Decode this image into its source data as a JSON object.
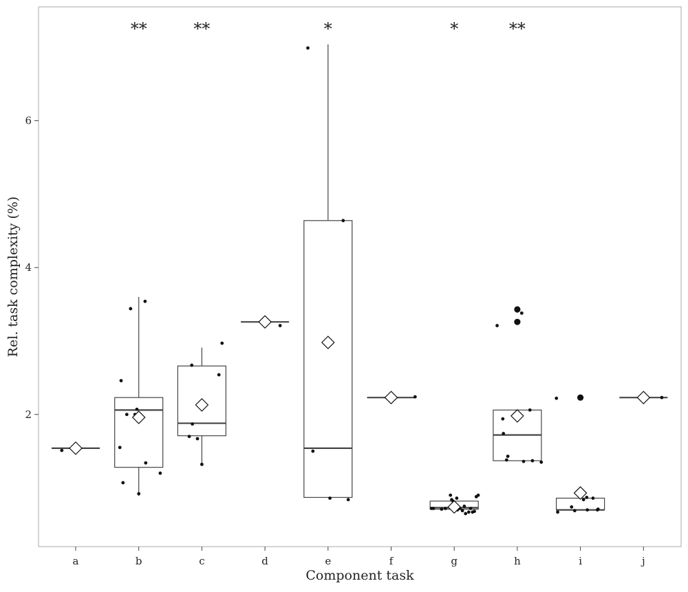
{
  "chart_data": {
    "type": "box",
    "xlabel": "Component task",
    "ylabel": "Rel. task complexity (%)",
    "ylim": [
      0.2,
      7.55
    ],
    "yticks": [
      2,
      4,
      6
    ],
    "grid": false,
    "categories": [
      "a",
      "b",
      "c",
      "d",
      "e",
      "f",
      "g",
      "h",
      "i",
      "j"
    ],
    "significance": [
      "",
      "**",
      "**",
      "",
      "*",
      "",
      "*",
      "**",
      "",
      ""
    ],
    "boxes": [
      {
        "q1": 1.54,
        "median": 1.54,
        "q3": 1.54,
        "whisker_low": 1.54,
        "whisker_high": 1.54,
        "mean": 1.54,
        "points": [
          [
            -0.22,
            1.51
          ]
        ],
        "outliers": []
      },
      {
        "q1": 1.28,
        "median": 2.06,
        "q3": 2.23,
        "whisker_low": 0.89,
        "whisker_high": 3.6,
        "mean": 1.96,
        "points": [
          [
            -0.3,
            1.55
          ],
          [
            -0.28,
            2.46
          ],
          [
            -0.25,
            1.07
          ],
          [
            -0.19,
            2.0
          ],
          [
            -0.13,
            3.44
          ],
          [
            -0.06,
            2.0
          ],
          [
            -0.03,
            2.07
          ],
          [
            0.0,
            0.92
          ],
          [
            0.1,
            3.54
          ],
          [
            0.11,
            1.34
          ],
          [
            0.34,
            1.2
          ]
        ],
        "outliers": []
      },
      {
        "q1": 1.71,
        "median": 1.88,
        "q3": 2.66,
        "whisker_low": 1.32,
        "whisker_high": 2.91,
        "mean": 2.13,
        "points": [
          [
            -0.2,
            1.7
          ],
          [
            -0.16,
            2.67
          ],
          [
            -0.15,
            1.87
          ],
          [
            -0.07,
            1.67
          ],
          [
            0.0,
            1.32
          ],
          [
            0.27,
            2.54
          ],
          [
            0.32,
            2.97
          ]
        ],
        "outliers": []
      },
      {
        "q1": 3.26,
        "median": 3.26,
        "q3": 3.26,
        "whisker_low": 3.26,
        "whisker_high": 3.26,
        "mean": 3.26,
        "points": [
          [
            0.24,
            3.21
          ]
        ],
        "outliers": []
      },
      {
        "q1": 0.87,
        "median": 1.54,
        "q3": 4.64,
        "whisker_low": 0.87,
        "whisker_high": 7.04,
        "mean": 2.98,
        "points": [
          [
            -0.32,
            6.99
          ],
          [
            -0.24,
            1.5
          ],
          [
            0.03,
            0.86
          ],
          [
            0.24,
            4.64
          ],
          [
            0.32,
            0.84
          ]
        ],
        "outliers": []
      },
      {
        "q1": 2.23,
        "median": 2.23,
        "q3": 2.23,
        "whisker_low": 2.23,
        "whisker_high": 2.23,
        "mean": 2.23,
        "points": [
          [
            0.38,
            2.24
          ]
        ],
        "outliers": []
      },
      {
        "q1": 0.71,
        "median": 0.73,
        "q3": 0.82,
        "whisker_low": 0.71,
        "whisker_high": 0.82,
        "mean": 0.74,
        "points": [
          [
            -0.36,
            0.72
          ],
          [
            -0.33,
            0.72
          ],
          [
            -0.2,
            0.71
          ],
          [
            -0.14,
            0.72
          ],
          [
            -0.06,
            0.9
          ],
          [
            -0.04,
            0.84
          ],
          [
            -0.02,
            0.82
          ],
          [
            0.02,
            0.76
          ],
          [
            0.04,
            0.86
          ],
          [
            0.05,
            0.7
          ],
          [
            0.09,
            0.72
          ],
          [
            0.13,
            0.69
          ],
          [
            0.16,
            0.75
          ],
          [
            0.18,
            0.65
          ],
          [
            0.23,
            0.67
          ],
          [
            0.26,
            0.72
          ],
          [
            0.29,
            0.67
          ],
          [
            0.32,
            0.68
          ],
          [
            0.35,
            0.88
          ],
          [
            0.38,
            0.9
          ]
        ],
        "outliers": []
      },
      {
        "q1": 1.37,
        "median": 1.72,
        "q3": 2.06,
        "whisker_low": 1.37,
        "whisker_high": 2.06,
        "mean": 1.98,
        "points": [
          [
            -0.32,
            3.21
          ],
          [
            -0.23,
            1.94
          ],
          [
            -0.22,
            1.74
          ],
          [
            -0.17,
            1.38
          ],
          [
            -0.15,
            1.43
          ],
          [
            0.07,
            3.38
          ],
          [
            0.1,
            1.36
          ],
          [
            0.2,
            2.06
          ],
          [
            0.24,
            1.37
          ],
          [
            0.38,
            1.35
          ]
        ],
        "outliers": [
          [
            0.0,
            3.43
          ],
          [
            0.0,
            3.26
          ]
        ]
      },
      {
        "q1": 0.7,
        "median": 0.7,
        "q3": 0.86,
        "whisker_low": 0.7,
        "whisker_high": 0.86,
        "mean": 0.93,
        "points": [
          [
            -0.36,
            0.67
          ],
          [
            -0.38,
            2.22
          ],
          [
            -0.14,
            0.74
          ],
          [
            -0.09,
            0.69
          ],
          [
            0.05,
            0.84
          ],
          [
            0.1,
            0.87
          ],
          [
            0.11,
            0.7
          ],
          [
            0.2,
            0.86
          ],
          [
            0.28,
            0.71
          ],
          [
            0.27,
            0.7
          ]
        ],
        "outliers": [
          [
            0.0,
            2.23
          ]
        ]
      },
      {
        "q1": 2.23,
        "median": 2.23,
        "q3": 2.23,
        "whisker_low": 2.23,
        "whisker_high": 2.23,
        "mean": 2.23,
        "points": [
          [
            0.29,
            2.23
          ]
        ],
        "outliers": []
      }
    ]
  }
}
